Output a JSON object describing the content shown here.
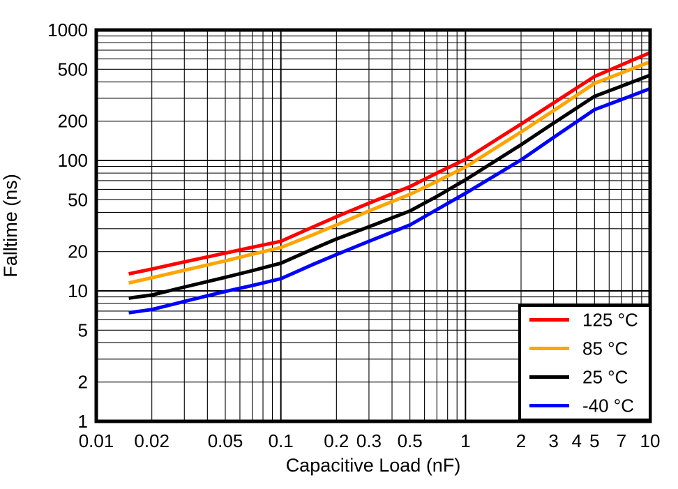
{
  "chart_data": {
    "type": "line",
    "title": "",
    "xlabel": "Capacitive Load (nF)",
    "ylabel": "Falltime (ns)",
    "x_scale": "log",
    "y_scale": "log",
    "xlim": [
      0.01,
      10
    ],
    "ylim": [
      1,
      1000
    ],
    "grid": "log-major-and-minor",
    "legend_position": "bottom-right",
    "frame_color": "#000000",
    "background_color": "#ffffff",
    "x_tick_labels": [
      "0.01",
      "0.02",
      "0.05",
      "0.1",
      "0.2",
      "0.3",
      "0.5",
      "1",
      "2",
      "3",
      "4",
      "5",
      "7",
      "10"
    ],
    "x_tick_values": [
      0.01,
      0.02,
      0.05,
      0.1,
      0.2,
      0.3,
      0.5,
      1,
      2,
      3,
      4,
      5,
      7,
      10
    ],
    "y_tick_labels": [
      "1",
      "2",
      "5",
      "10",
      "20",
      "50",
      "100",
      "200",
      "500",
      "1000"
    ],
    "y_tick_values": [
      1,
      2,
      5,
      10,
      20,
      50,
      100,
      200,
      500,
      1000
    ],
    "x": [
      0.015,
      0.02,
      0.03,
      0.05,
      0.07,
      0.1,
      0.15,
      0.2,
      0.3,
      0.5,
      0.7,
      1,
      1.5,
      2,
      3,
      5,
      7,
      10
    ],
    "series": [
      {
        "name": "125 °C",
        "color": "#ff0000",
        "values": [
          13.5,
          14.7,
          16.7,
          19.5,
          21.6,
          24,
          31,
          37,
          47,
          63,
          80,
          102,
          147,
          190,
          276,
          440,
          540,
          670
        ]
      },
      {
        "name": "85 °C",
        "color": "#ffa500",
        "values": [
          11.5,
          12.6,
          14.4,
          17,
          19.1,
          21.5,
          27,
          32,
          41,
          55,
          69,
          89,
          128,
          165,
          241,
          390,
          469,
          570
        ]
      },
      {
        "name": "25 °C",
        "color": "#000000",
        "values": [
          8.8,
          9.3,
          10.7,
          12.7,
          14.3,
          16.3,
          21,
          25,
          31,
          41,
          53,
          71,
          102,
          132,
          193,
          310,
          371,
          450
        ]
      },
      {
        "name": "-40 °C",
        "color": "#0000ff",
        "values": [
          6.8,
          7.2,
          8.3,
          9.9,
          11,
          12.4,
          16,
          19,
          24,
          32,
          42,
          56,
          79,
          101,
          150,
          245,
          293,
          355
        ]
      }
    ]
  }
}
